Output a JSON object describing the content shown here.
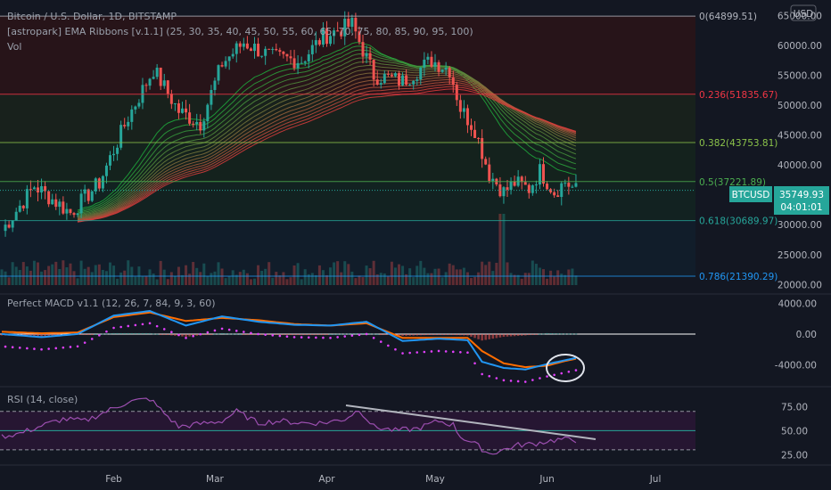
{
  "header": {
    "title": "Bitcoin / U.S. Dollar, 1D, BITSTAMP",
    "ema_indicator": "[astropark] EMA Ribbons [v.1.1] (25, 30, 35, 40, 45, 50, 55, 60, 65, 70, 75, 80, 85, 90, 95, 100)",
    "volume_label": "Vol",
    "currency_badge": "USD"
  },
  "price_axis": {
    "ticks": [
      "65000.00",
      "60000.00",
      "55000.00",
      "50000.00",
      "45000.00",
      "40000.00",
      "35000.00",
      "30000.00",
      "25000.00",
      "20000.00"
    ],
    "tick_values": [
      65000,
      60000,
      55000,
      50000,
      45000,
      40000,
      35000,
      30000,
      25000,
      20000
    ],
    "range": [
      19900,
      67600
    ]
  },
  "last_price": {
    "symbol": "BTCUSD",
    "price": "35749.93",
    "countdown": "04:01:01",
    "value": 35749.93,
    "color": "#26a69a"
  },
  "fib_levels": [
    {
      "label": "0(64899.51)",
      "value": 64899.51,
      "color": "#b2b5be"
    },
    {
      "label": "0.236(51835.67)",
      "value": 51835.67,
      "color": "#f23645"
    },
    {
      "label": "0.382(43753.81)",
      "value": 43753.81,
      "color": "#8bc34a"
    },
    {
      "label": "0.5(37221.89)",
      "value": 37221.89,
      "color": "#4caf50"
    },
    {
      "label": "0.618(30689.97)",
      "value": 30689.97,
      "color": "#26a69a"
    },
    {
      "label": "0.786(21390.29)",
      "value": 21390.29,
      "color": "#2196f3"
    }
  ],
  "macd": {
    "label": "Perfect MACD v1.1 (12, 26, 7, 84, 9, 3, 60)",
    "ticks": [
      "4000.00",
      "0.00",
      "-4000.00"
    ],
    "tick_values": [
      4000,
      0,
      -4000
    ],
    "range": [
      -6600,
      5200
    ]
  },
  "rsi": {
    "label": "RSI (14, close)",
    "ticks": [
      "75.00",
      "50.00",
      "25.00"
    ],
    "tick_values": [
      75,
      50,
      25
    ],
    "range": [
      16,
      92
    ]
  },
  "time_axis": {
    "labels": [
      "Feb",
      "Mar",
      "Apr",
      "May",
      "Jun",
      "Jul"
    ],
    "label_days": [
      32,
      60,
      91,
      121,
      152,
      182
    ]
  },
  "chart_data": {
    "type": "candlestick",
    "title": "Bitcoin / U.S. Dollar, 1D, BITSTAMP",
    "series": [
      {
        "name": "BTCUSD close",
        "x_day": [
          1,
          10,
          20,
          28,
          36,
          43,
          50,
          56,
          62,
          68,
          76,
          84,
          90,
          98,
          104,
          112,
          120,
          125,
          128,
          132,
          136,
          140,
          143,
          147,
          150,
          154,
          157,
          160
        ],
        "values": [
          29000,
          36500,
          32000,
          37000,
          48000,
          56000,
          49000,
          47000,
          57000,
          60500,
          58000,
          57500,
          61500,
          63500,
          55000,
          54000,
          57500,
          56000,
          49500,
          46000,
          38500,
          35500,
          37000,
          36000,
          39000,
          35500,
          37200,
          35750
        ]
      }
    ],
    "macd_series": [
      {
        "name": "MACD",
        "x_day": [
          1,
          12,
          22,
          32,
          42,
          52,
          62,
          72,
          82,
          92,
          102,
          112,
          122,
          130,
          134,
          140,
          146,
          152,
          157,
          160
        ],
        "values": [
          0,
          -400,
          0,
          2400,
          3000,
          1100,
          2300,
          1600,
          1200,
          1100,
          1600,
          -900,
          -600,
          -800,
          -3600,
          -4400,
          -4600,
          -3900,
          -3400,
          -3100
        ]
      },
      {
        "name": "Signal",
        "x_day": [
          1,
          12,
          22,
          32,
          42,
          52,
          62,
          72,
          82,
          92,
          102,
          112,
          122,
          130,
          134,
          140,
          146,
          152,
          157,
          160
        ],
        "values": [
          300,
          100,
          200,
          2200,
          2800,
          1700,
          2100,
          1800,
          1300,
          1100,
          1400,
          -500,
          -500,
          -500,
          -2200,
          -3800,
          -4300,
          -4100,
          -3500,
          -3200
        ]
      }
    ],
    "rsi_series": [
      {
        "name": "RSI",
        "x_day": [
          1,
          6,
          12,
          18,
          24,
          30,
          36,
          42,
          46,
          50,
          56,
          62,
          66,
          72,
          78,
          84,
          90,
          96,
          100,
          104,
          110,
          116,
          122,
          126,
          128,
          132,
          136,
          140,
          144,
          148,
          152,
          156,
          160
        ],
        "values": [
          44,
          47,
          55,
          62,
          60,
          70,
          80,
          83,
          68,
          54,
          57,
          60,
          70,
          58,
          60,
          58,
          58,
          62,
          72,
          54,
          50,
          52,
          60,
          56,
          44,
          36,
          26,
          30,
          35,
          36,
          39,
          41,
          40
        ]
      }
    ],
    "ylim": [
      19900,
      67600
    ]
  }
}
